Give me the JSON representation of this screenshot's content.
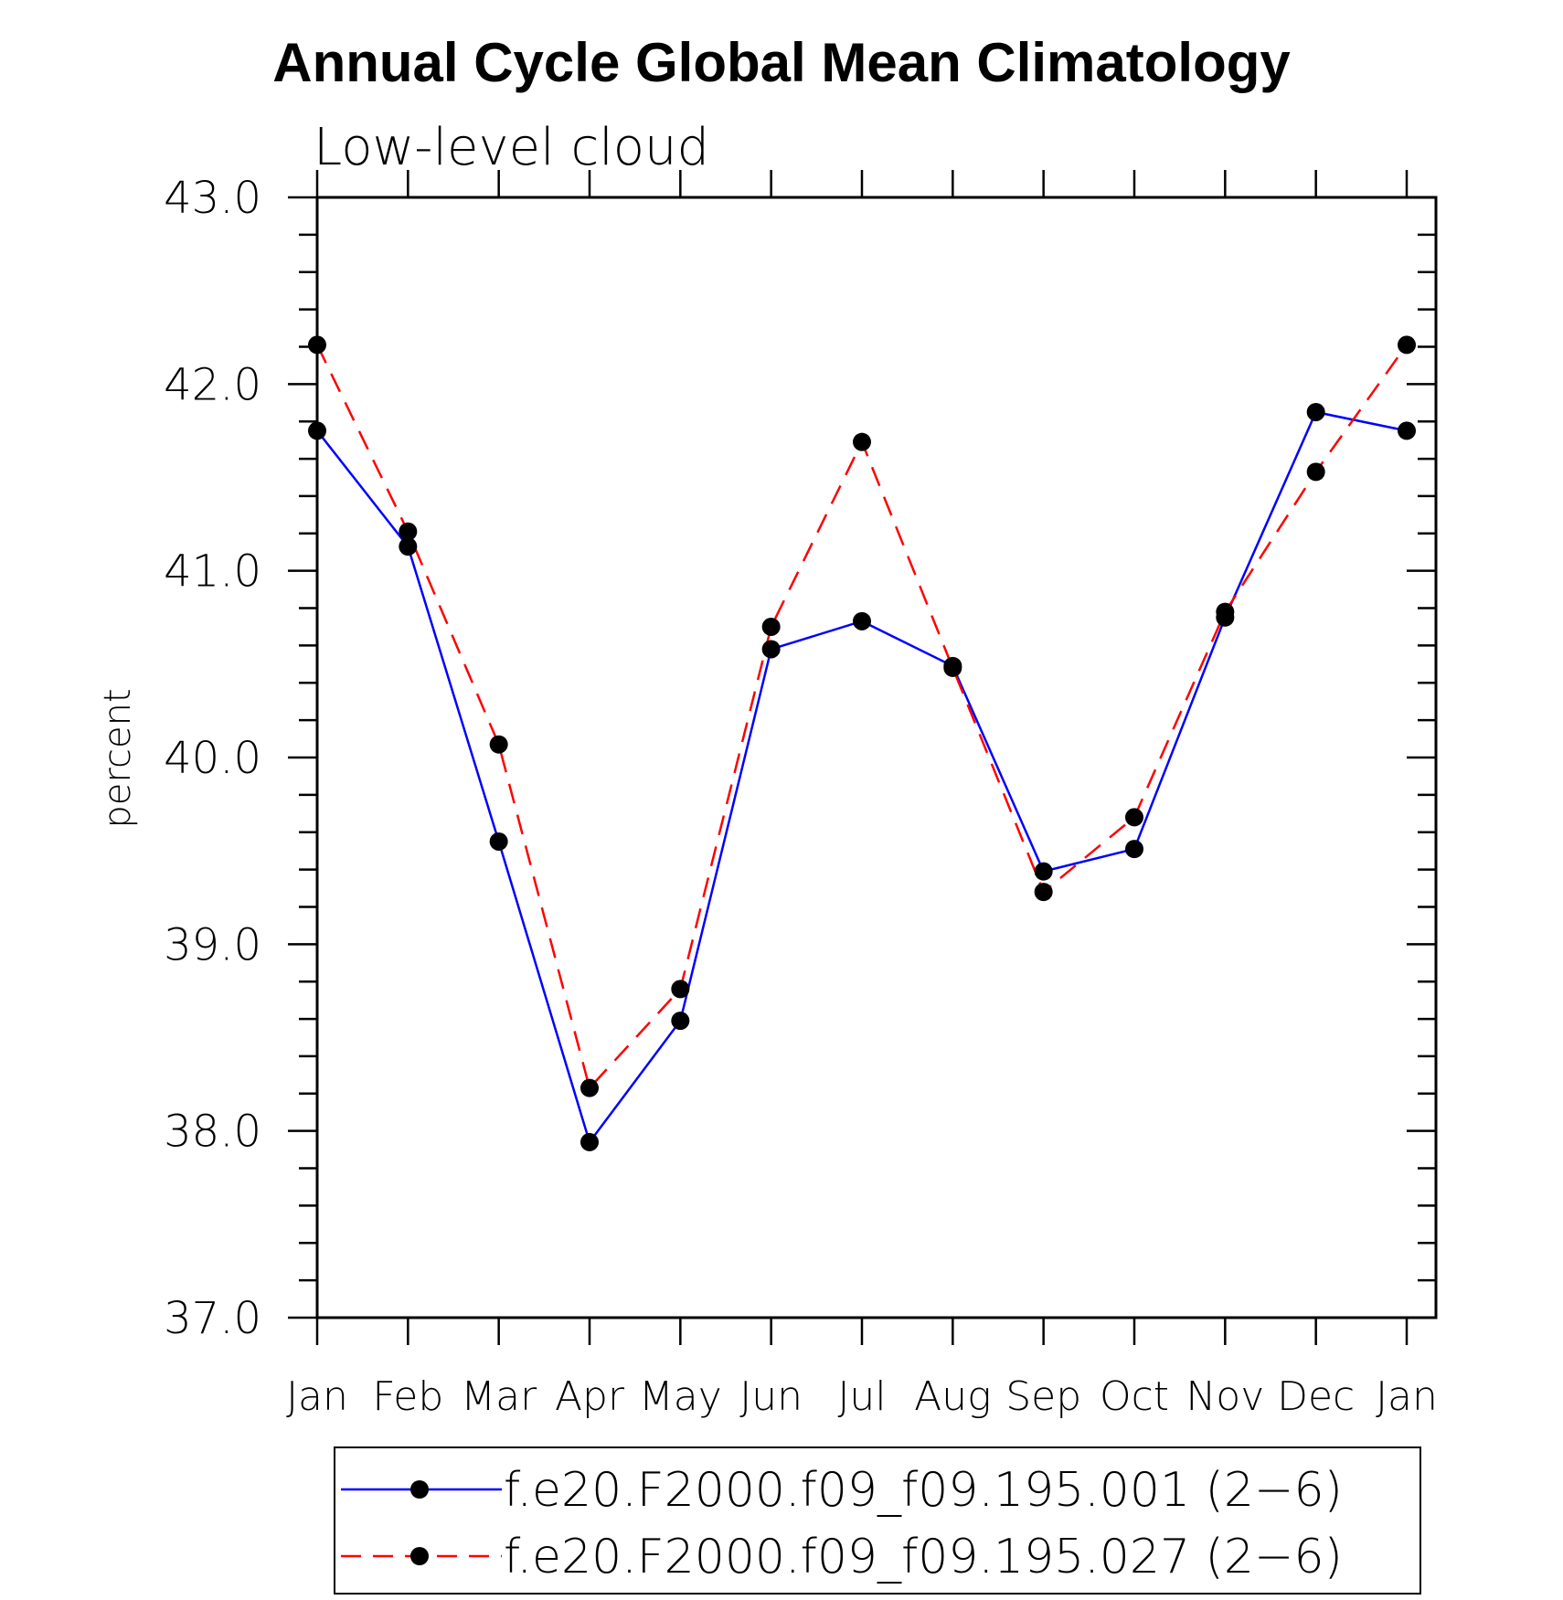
{
  "chart_data": {
    "type": "line",
    "title": "Annual Cycle Global Mean Climatology",
    "subtitle": "Low-level cloud",
    "xlabel": "",
    "ylabel": "percent",
    "ylim": [
      37.0,
      43.0
    ],
    "yticks": [
      "37.0",
      "38.0",
      "39.0",
      "40.0",
      "41.0",
      "42.0",
      "43.0"
    ],
    "categories": [
      "Jan",
      "Feb",
      "Mar",
      "Apr",
      "May",
      "Jun",
      "Jul",
      "Aug",
      "Sep",
      "Oct",
      "Nov",
      "Dec",
      "Jan"
    ],
    "grid": false,
    "legend_position": "bottom",
    "series": [
      {
        "name": "f.e20.F2000.f09_f09.195.001 (2−6)",
        "color": "#0000ff",
        "dash": "solid",
        "values": [
          41.75,
          41.13,
          39.55,
          37.94,
          38.59,
          40.58,
          40.73,
          40.49,
          39.39,
          39.51,
          40.75,
          41.85,
          41.75
        ]
      },
      {
        "name": "f.e20.F2000.f09_f09.195.027 (2−6)",
        "color": "#ff0000",
        "dash": "dashed",
        "values": [
          42.21,
          41.21,
          40.07,
          38.23,
          38.76,
          40.7,
          41.69,
          40.48,
          39.28,
          39.68,
          40.78,
          41.53,
          42.21
        ]
      }
    ]
  }
}
